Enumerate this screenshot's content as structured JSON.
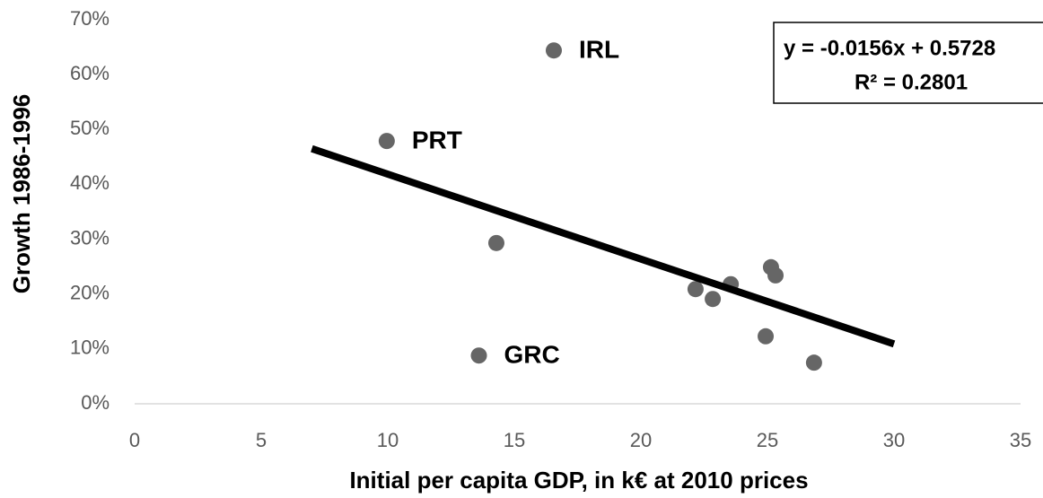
{
  "chart_data": {
    "type": "scatter",
    "x_label": "Initial per capita GDP, in k€ at 2010 prices",
    "y_label": "Growth 1986-1996",
    "x": [
      16.56,
      9.96,
      14.29,
      13.6,
      22.16,
      22.84,
      23.55,
      25.14,
      25.32,
      24.93,
      26.84
    ],
    "values": [
      64.4,
      47.9,
      29.3,
      8.8,
      20.9,
      19.1,
      21.8,
      24.9,
      23.4,
      12.3,
      7.5
    ],
    "point_labels": [
      "IRL",
      "PRT",
      null,
      "GRC",
      null,
      null,
      null,
      null,
      null,
      null,
      null
    ],
    "color": "#666666",
    "trendline": {
      "x": [
        7,
        30
      ],
      "values": [
        46.5,
        10.9
      ],
      "color": "#000000",
      "equation": "y = -0.0156x + 0.5728",
      "r_squared": "R² = 0.2801"
    },
    "xlim": [
      0,
      35
    ],
    "xticks": [
      0,
      5,
      10,
      15,
      20,
      25,
      30,
      35
    ],
    "ylim": [
      0,
      70
    ],
    "yticks": [
      {
        "value": 0,
        "label": "0%"
      },
      {
        "value": 10,
        "label": "10%"
      },
      {
        "value": 20,
        "label": "20%"
      },
      {
        "value": 30,
        "label": "30%"
      },
      {
        "value": 40,
        "label": "40%"
      },
      {
        "value": 50,
        "label": "50%"
      },
      {
        "value": 60,
        "label": "60%"
      },
      {
        "value": 70,
        "label": "70%"
      }
    ],
    "grid": false
  }
}
